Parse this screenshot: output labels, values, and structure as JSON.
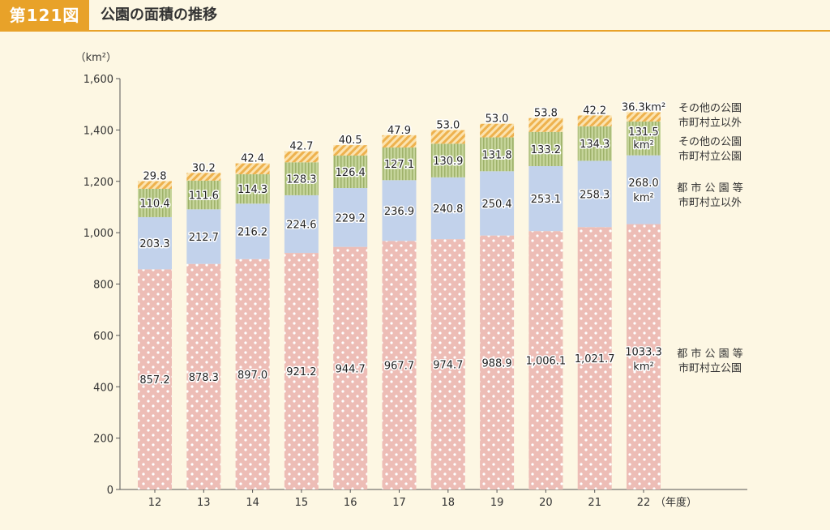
{
  "header": {
    "figure_number": "第121図",
    "title": "公園の面積の推移"
  },
  "colors": {
    "city_park_municipal": "#edbdb6",
    "city_park_other": "#c2d2eb",
    "other_park_municipal": "#b7c78a",
    "other_park_other": "#f2c37a",
    "background": "#fdf7e3",
    "accent": "#e8a229"
  },
  "chart_data": {
    "type": "bar",
    "stacked": true,
    "unit_label": "（km²）",
    "xlabel_suffix": "（年度）",
    "categories": [
      "12",
      "13",
      "14",
      "15",
      "16",
      "17",
      "18",
      "19",
      "20",
      "21",
      "22"
    ],
    "ylim": [
      0,
      1600
    ],
    "yticks": [
      "0",
      "200",
      "400",
      "600",
      "800",
      "1,000",
      "1,200",
      "1,400",
      "1,600"
    ],
    "series": [
      {
        "key": "city_park_municipal",
        "legend": [
          "都 市 公 園 等",
          "市町村立公園"
        ],
        "values": [
          857.2,
          878.3,
          897.0,
          921.2,
          944.7,
          967.7,
          974.7,
          988.9,
          1006.1,
          1021.7,
          1033.3
        ],
        "labels": [
          "857.2",
          "878.3",
          "897.0",
          "921.2",
          "944.7",
          "967.7",
          "974.7",
          "988.9",
          "1,006.1",
          "1,021.7",
          "1033.3"
        ]
      },
      {
        "key": "city_park_other",
        "legend": [
          "都 市 公 園 等",
          "市町村立以外"
        ],
        "values": [
          203.3,
          212.7,
          216.2,
          224.6,
          229.2,
          236.9,
          240.8,
          250.4,
          253.1,
          258.3,
          268.0
        ],
        "labels": [
          "203.3",
          "212.7",
          "216.2",
          "224.6",
          "229.2",
          "236.9",
          "240.8",
          "250.4",
          "253.1",
          "258.3",
          "268.0"
        ]
      },
      {
        "key": "other_park_municipal",
        "legend": [
          "その他の公園",
          "市町村立公園"
        ],
        "values": [
          110.4,
          111.6,
          114.3,
          128.3,
          126.4,
          127.1,
          130.9,
          131.8,
          133.2,
          134.3,
          131.5
        ],
        "labels": [
          "110.4",
          "111.6",
          "114.3",
          "128.3",
          "126.4",
          "127.1",
          "130.9",
          "131.8",
          "133.2",
          "134.3",
          "131.5"
        ]
      },
      {
        "key": "other_park_other",
        "legend": [
          "その他の公園",
          "市町村立以外"
        ],
        "values": [
          29.8,
          30.2,
          42.4,
          42.7,
          40.5,
          47.9,
          53.0,
          53.0,
          53.8,
          42.2,
          36.3
        ],
        "labels": [
          "29.8",
          "30.2",
          "42.4",
          "42.7",
          "40.5",
          "47.9",
          "53.0",
          "53.0",
          "53.8",
          "42.2",
          "36.3km²"
        ]
      }
    ],
    "last_bar_unit": "km²"
  }
}
